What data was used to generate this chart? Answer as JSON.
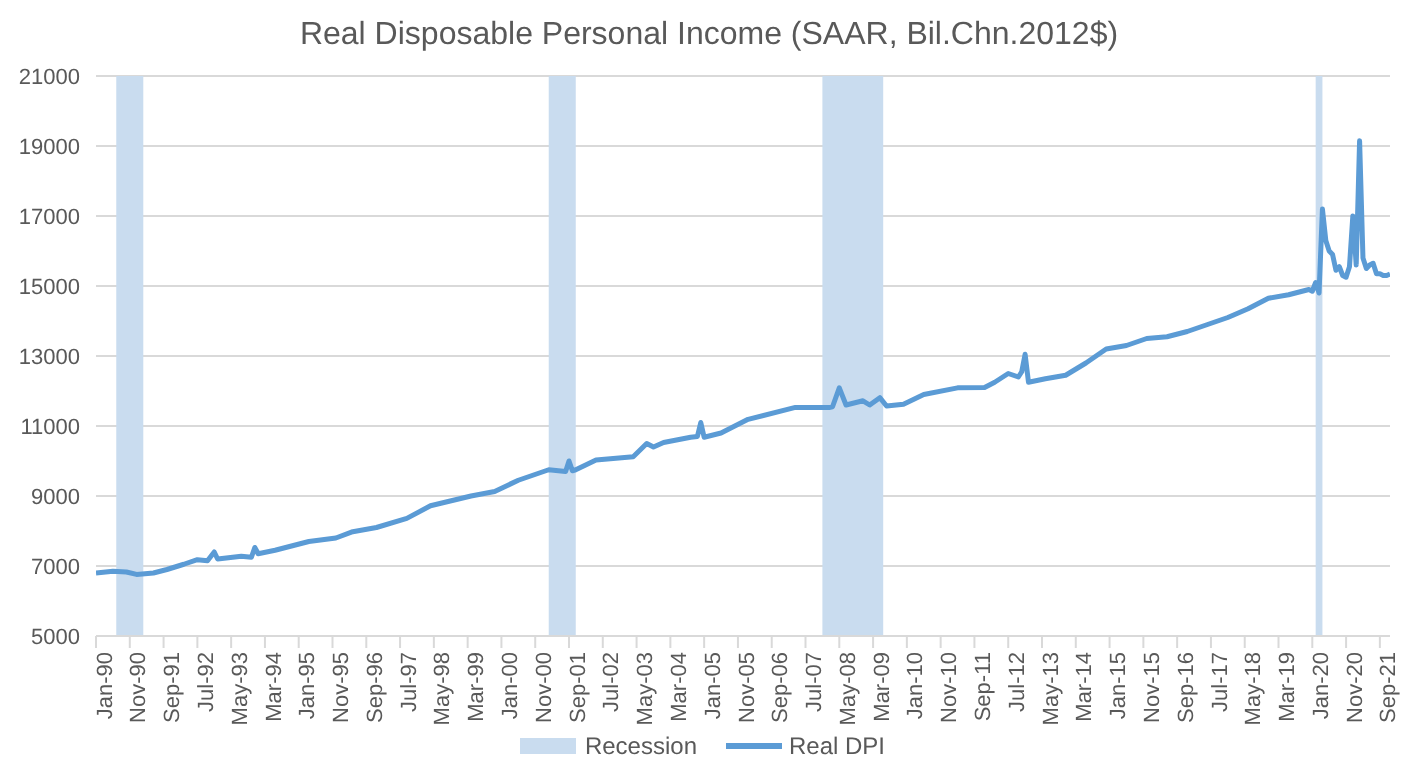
{
  "chart_data": {
    "type": "line",
    "title": "Real Disposable Personal Income (SAAR, Bil.Chn.2012$)",
    "x": [
      "1990-01",
      "1990-06",
      "1990-10",
      "1991-01",
      "1991-06",
      "1991-10",
      "1992-03",
      "1992-07",
      "1992-10",
      "1992-12",
      "1993-01",
      "1993-08",
      "1993-11",
      "1993-12",
      "1994-01",
      "1994-06",
      "1995-04",
      "1995-12",
      "1996-05",
      "1996-12",
      "1997-09",
      "1998-04",
      "1999-04",
      "1999-11",
      "2000-06",
      "2000-12",
      "2001-03",
      "2001-08",
      "2001-09",
      "2001-10",
      "2001-11",
      "2002-05",
      "2003-04",
      "2003-08",
      "2003-10",
      "2004-01",
      "2004-09",
      "2004-11",
      "2004-12",
      "2005-01",
      "2005-06",
      "2006-02",
      "2007-04",
      "2008-02",
      "2008-03",
      "2008-05",
      "2008-07",
      "2008-12",
      "2009-02",
      "2009-05",
      "2009-07",
      "2009-12",
      "2010-06",
      "2011-04",
      "2011-12",
      "2012-03",
      "2012-07",
      "2012-10",
      "2012-11",
      "2012-12",
      "2013-01",
      "2013-06",
      "2013-12",
      "2014-06",
      "2014-12",
      "2015-06",
      "2015-12",
      "2016-06",
      "2016-12",
      "2017-06",
      "2017-12",
      "2018-06",
      "2018-12",
      "2019-06",
      "2019-12",
      "2020-01",
      "2020-02",
      "2020-03",
      "2020-04",
      "2020-05",
      "2020-06",
      "2020-07",
      "2020-08",
      "2020-09",
      "2020-10",
      "2020-11",
      "2020-12",
      "2021-01",
      "2021-02",
      "2021-03",
      "2021-04",
      "2021-05",
      "2021-06",
      "2021-07",
      "2021-08",
      "2021-09",
      "2021-10",
      "2021-11",
      "2021-12"
    ],
    "series": [
      {
        "name": "Real DPI",
        "color": "#5b9bd5",
        "values": [
          6800,
          6850,
          6830,
          6760,
          6800,
          6900,
          7050,
          7180,
          7150,
          7400,
          7200,
          7280,
          7250,
          7530,
          7350,
          7450,
          7700,
          7800,
          7980,
          8100,
          8360,
          8720,
          9000,
          9130,
          9450,
          9650,
          9750,
          9700,
          10000,
          9720,
          9750,
          10030,
          10120,
          10500,
          10400,
          10530,
          10680,
          10700,
          11100,
          10680,
          10800,
          11190,
          11530,
          11530,
          11550,
          12090,
          11600,
          11720,
          11600,
          11810,
          11570,
          11620,
          11900,
          12090,
          12100,
          12250,
          12500,
          12400,
          12550,
          13050,
          12250,
          12350,
          12450,
          12800,
          13200,
          13300,
          13500,
          13550,
          13700,
          13900,
          14100,
          14350,
          14650,
          14750,
          14900,
          14850,
          15100,
          14800,
          17200,
          16300,
          16000,
          15900,
          15450,
          15550,
          15300,
          15250,
          15550,
          17000,
          15600,
          19150,
          15800,
          15500,
          15600,
          15650,
          15350,
          15350,
          15300,
          15300,
          15340
        ]
      }
    ],
    "bands": [
      {
        "axis": "x",
        "from": "1990-07",
        "to": "1991-03",
        "label": "Recession",
        "color": "#c9dcef"
      },
      {
        "axis": "x",
        "from": "2001-03",
        "to": "2001-11",
        "color": "#c9dcef"
      },
      {
        "axis": "x",
        "from": "2007-12",
        "to": "2009-06",
        "color": "#c9dcef"
      },
      {
        "axis": "x",
        "from": "2020-02",
        "to": "2020-04",
        "color": "#c9dcef"
      }
    ],
    "xlim": [
      "1990-01",
      "2021-12"
    ],
    "xticks": [
      {
        "value": "1990-01",
        "label": "Jan-90"
      },
      {
        "value": "1990-11",
        "label": "Nov-90"
      },
      {
        "value": "1991-09",
        "label": "Sep-91"
      },
      {
        "value": "1992-07",
        "label": "Jul-92"
      },
      {
        "value": "1993-05",
        "label": "May-93"
      },
      {
        "value": "1994-03",
        "label": "Mar-94"
      },
      {
        "value": "1995-01",
        "label": "Jan-95"
      },
      {
        "value": "1995-11",
        "label": "Nov-95"
      },
      {
        "value": "1996-09",
        "label": "Sep-96"
      },
      {
        "value": "1997-07",
        "label": "Jul-97"
      },
      {
        "value": "1998-05",
        "label": "May-98"
      },
      {
        "value": "1999-03",
        "label": "Mar-99"
      },
      {
        "value": "2000-01",
        "label": "Jan-00"
      },
      {
        "value": "2000-11",
        "label": "Nov-00"
      },
      {
        "value": "2001-09",
        "label": "Sep-01"
      },
      {
        "value": "2002-07",
        "label": "Jul-02"
      },
      {
        "value": "2003-05",
        "label": "May-03"
      },
      {
        "value": "2004-03",
        "label": "Mar-04"
      },
      {
        "value": "2005-01",
        "label": "Jan-05"
      },
      {
        "value": "2005-11",
        "label": "Nov-05"
      },
      {
        "value": "2006-09",
        "label": "Sep-06"
      },
      {
        "value": "2007-07",
        "label": "Jul-07"
      },
      {
        "value": "2008-05",
        "label": "May-08"
      },
      {
        "value": "2009-03",
        "label": "Mar-09"
      },
      {
        "value": "2010-01",
        "label": "Jan-10"
      },
      {
        "value": "2010-11",
        "label": "Nov-10"
      },
      {
        "value": "2011-09",
        "label": "Sep-11"
      },
      {
        "value": "2012-07",
        "label": "Jul-12"
      },
      {
        "value": "2013-05",
        "label": "May-13"
      },
      {
        "value": "2014-03",
        "label": "Mar-14"
      },
      {
        "value": "2015-01",
        "label": "Jan-15"
      },
      {
        "value": "2015-11",
        "label": "Nov-15"
      },
      {
        "value": "2016-09",
        "label": "Sep-16"
      },
      {
        "value": "2017-07",
        "label": "Jul-17"
      },
      {
        "value": "2018-05",
        "label": "May-18"
      },
      {
        "value": "2019-03",
        "label": "Mar-19"
      },
      {
        "value": "2020-01",
        "label": "Jan-20"
      },
      {
        "value": "2020-11",
        "label": "Nov-20"
      },
      {
        "value": "2021-09",
        "label": "Sep-21"
      }
    ],
    "ylim": [
      5000,
      21000
    ],
    "yticks": [
      5000,
      7000,
      9000,
      11000,
      13000,
      15000,
      17000,
      19000,
      21000
    ],
    "grid": "y",
    "legend": "bottom",
    "marker": "none",
    "line_style": "solid"
  }
}
